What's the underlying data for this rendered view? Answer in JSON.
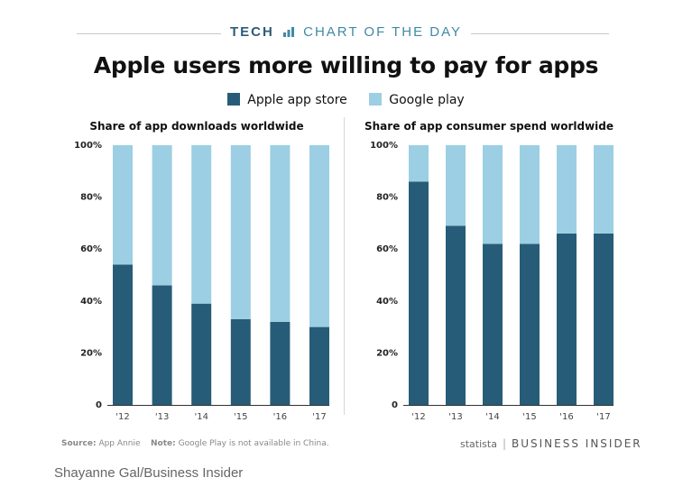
{
  "header": {
    "tech": "TECH",
    "chart_of_day": "CHART OF THE DAY"
  },
  "title": "Apple users more willing to pay for apps",
  "legend": [
    {
      "label": "Apple app store",
      "color": "#275c78"
    },
    {
      "label": "Google play",
      "color": "#9ccfe3"
    }
  ],
  "footer": {
    "source_label": "Source:",
    "source_text": "App Annie",
    "note_label": "Note:",
    "note_text": "Google Play is not available in China.",
    "statista": "statista",
    "business_insider": "BUSINESS INSIDER"
  },
  "credit": "Shayanne Gal/Business Insider",
  "chart_data": [
    {
      "type": "bar",
      "stacked": true,
      "title": "Share of app downloads worldwide",
      "categories": [
        "'12",
        "'13",
        "'14",
        "'15",
        "'16",
        "'17"
      ],
      "series": [
        {
          "name": "Apple app store",
          "values": [
            54,
            46,
            39,
            33,
            32,
            30
          ]
        },
        {
          "name": "Google play",
          "values": [
            46,
            54,
            61,
            67,
            68,
            70
          ]
        }
      ],
      "ylim": [
        0,
        100
      ],
      "yticks": [
        "0",
        "20%",
        "40%",
        "60%",
        "80%",
        "100%"
      ],
      "xlabel": "",
      "ylabel": ""
    },
    {
      "type": "bar",
      "stacked": true,
      "title": "Share of app consumer spend worldwide",
      "categories": [
        "'12",
        "'13",
        "'14",
        "'15",
        "'16",
        "'17"
      ],
      "series": [
        {
          "name": "Apple app store",
          "values": [
            86,
            69,
            62,
            62,
            66,
            66
          ]
        },
        {
          "name": "Google play",
          "values": [
            14,
            31,
            38,
            38,
            34,
            34
          ]
        }
      ],
      "ylim": [
        0,
        100
      ],
      "yticks": [
        "0",
        "20%",
        "40%",
        "60%",
        "80%",
        "100%"
      ],
      "xlabel": "",
      "ylabel": ""
    }
  ]
}
